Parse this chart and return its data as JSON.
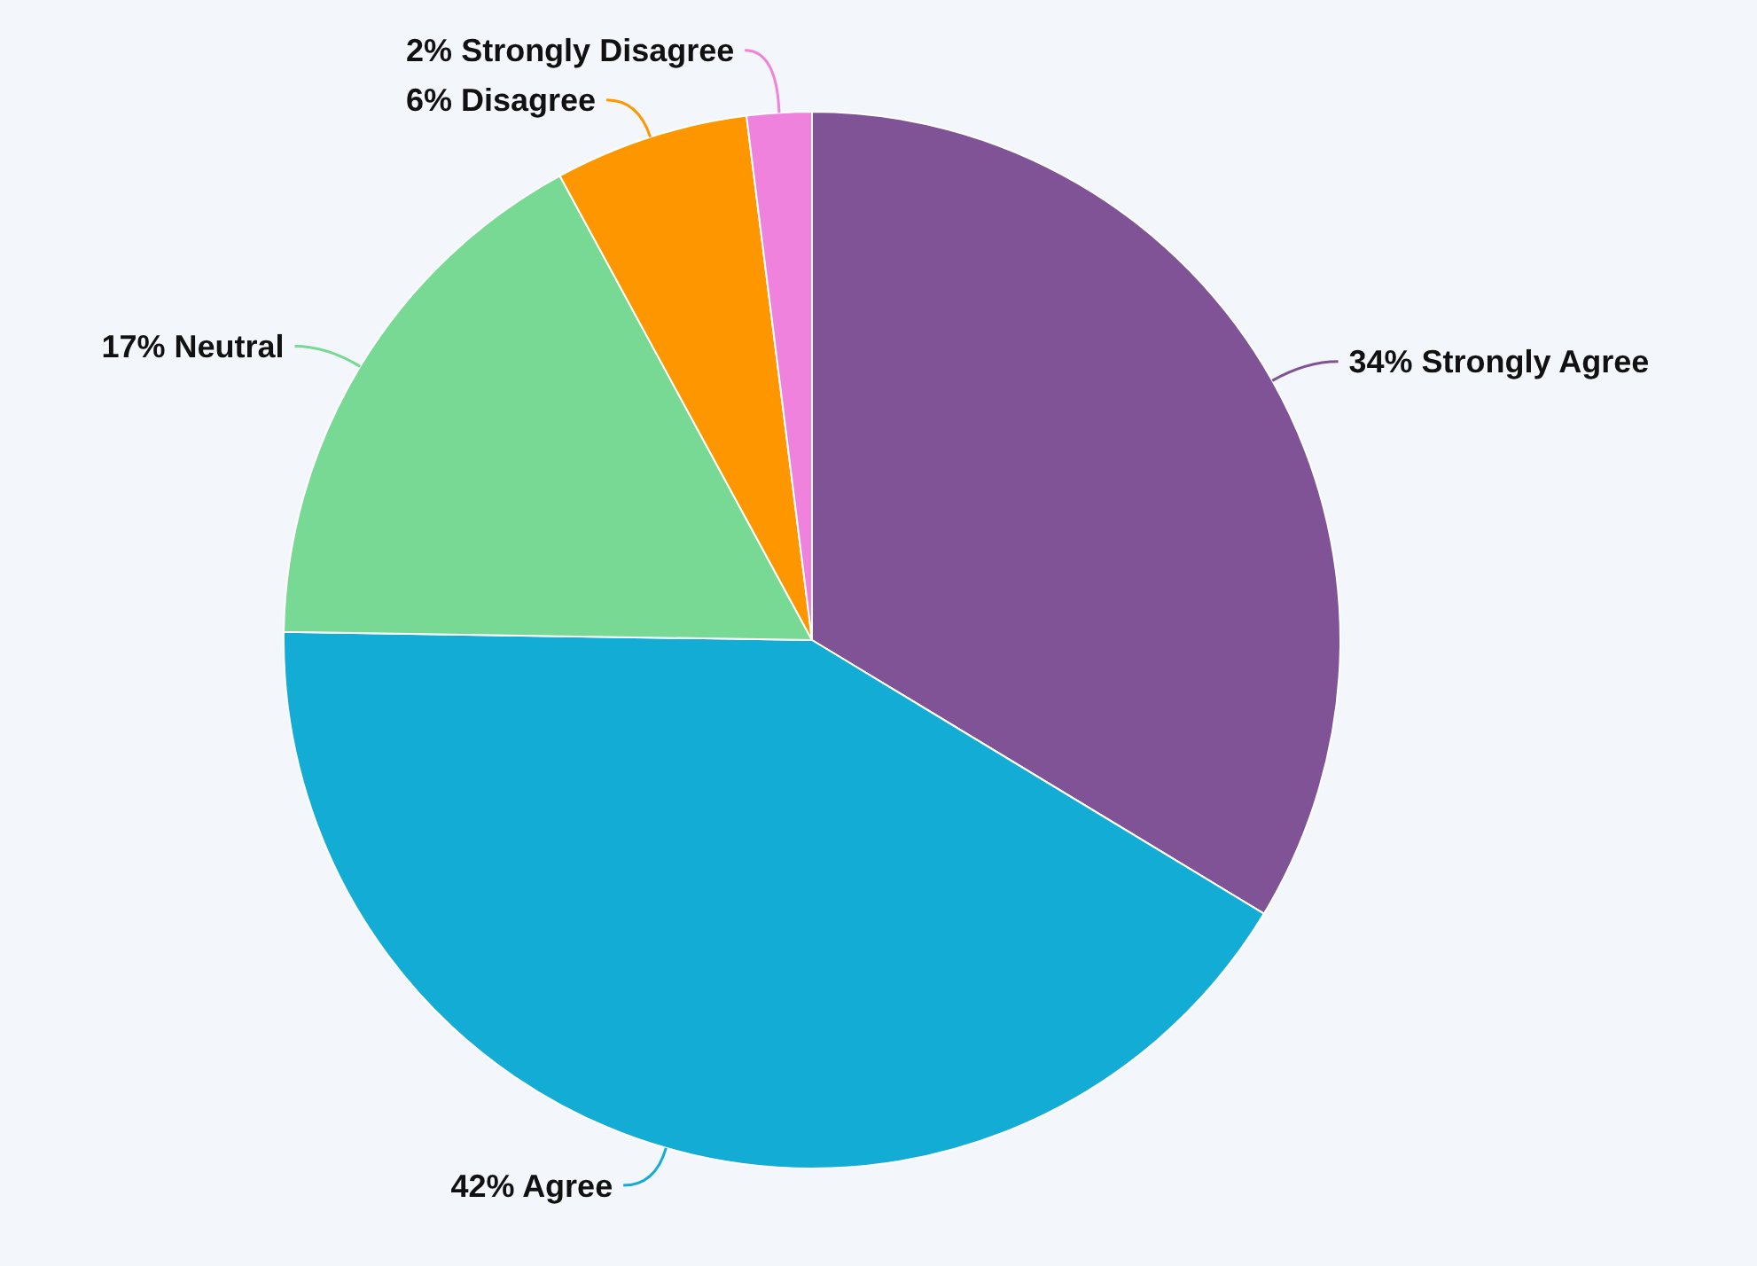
{
  "chart_data": {
    "type": "pie",
    "categories": [
      "Strongly Agree",
      "Agree",
      "Neutral",
      "Disagree",
      "Strongly Disagree"
    ],
    "values": [
      34,
      42,
      17,
      6,
      2
    ],
    "colors": [
      "#7f5395",
      "#13acd4",
      "#77d994",
      "#fe9600",
      "#ee82dd"
    ],
    "value_labels": [
      "34%",
      "42%",
      "17%",
      "6%",
      "2%"
    ]
  }
}
